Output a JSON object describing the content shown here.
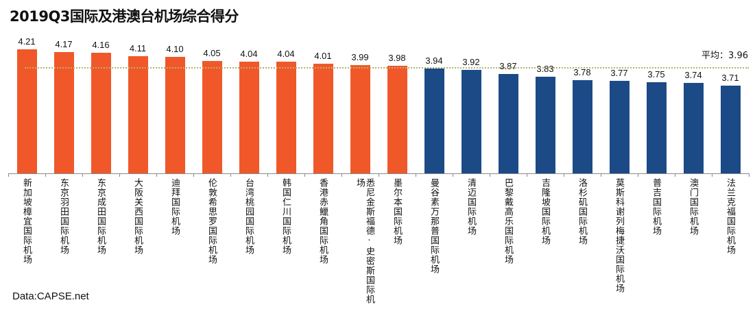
{
  "chart_data": {
    "type": "bar",
    "title": "2019Q3国际及港澳台机场综合得分",
    "xlabel": "",
    "ylabel": "",
    "ylim": [
      2.5,
      4.3
    ],
    "grid": false,
    "categories": [
      "新加坡樟宜国际机场",
      "东京羽田国际机场",
      "东京成田国际机场",
      "大阪关西国际机场",
      "迪拜国际机场",
      "伦敦希思罗国际机场",
      "台湾桃园国际机场",
      "韩国仁川国际机场",
      "香港赤鱲角国际机场",
      "悉尼金斯福德·史密斯国际机场",
      "墨尔本国际机场",
      "曼谷素万那普国际机场",
      "清迈国际机场",
      "巴黎戴高乐国际机场",
      "吉隆坡国际机场",
      "洛杉矶国际机场",
      "莫斯科谢列梅捷沃国际机场",
      "普吉国际机场",
      "澳门国际机场",
      "法兰克福国际机场"
    ],
    "values": [
      4.21,
      4.17,
      4.16,
      4.11,
      4.1,
      4.05,
      4.04,
      4.04,
      4.01,
      3.99,
      3.98,
      3.94,
      3.92,
      3.87,
      3.83,
      3.78,
      3.77,
      3.75,
      3.74,
      3.71
    ],
    "value_labels": [
      "4.21",
      "4.17",
      "4.16",
      "4.11",
      "4.10",
      "4.05",
      "4.04",
      "4.04",
      "4.01",
      "3.99",
      "3.98",
      "3.94",
      "3.92",
      "3.87",
      "3.83",
      "3.78",
      "3.77",
      "3.75",
      "3.74",
      "3.71"
    ],
    "average": 3.96,
    "average_label": "平均：3.96",
    "colors": {
      "above_average": "#F0582A",
      "below_average": "#1B4A86",
      "average_line": "#B5B36A"
    },
    "source": "Data:CAPSE.net"
  }
}
